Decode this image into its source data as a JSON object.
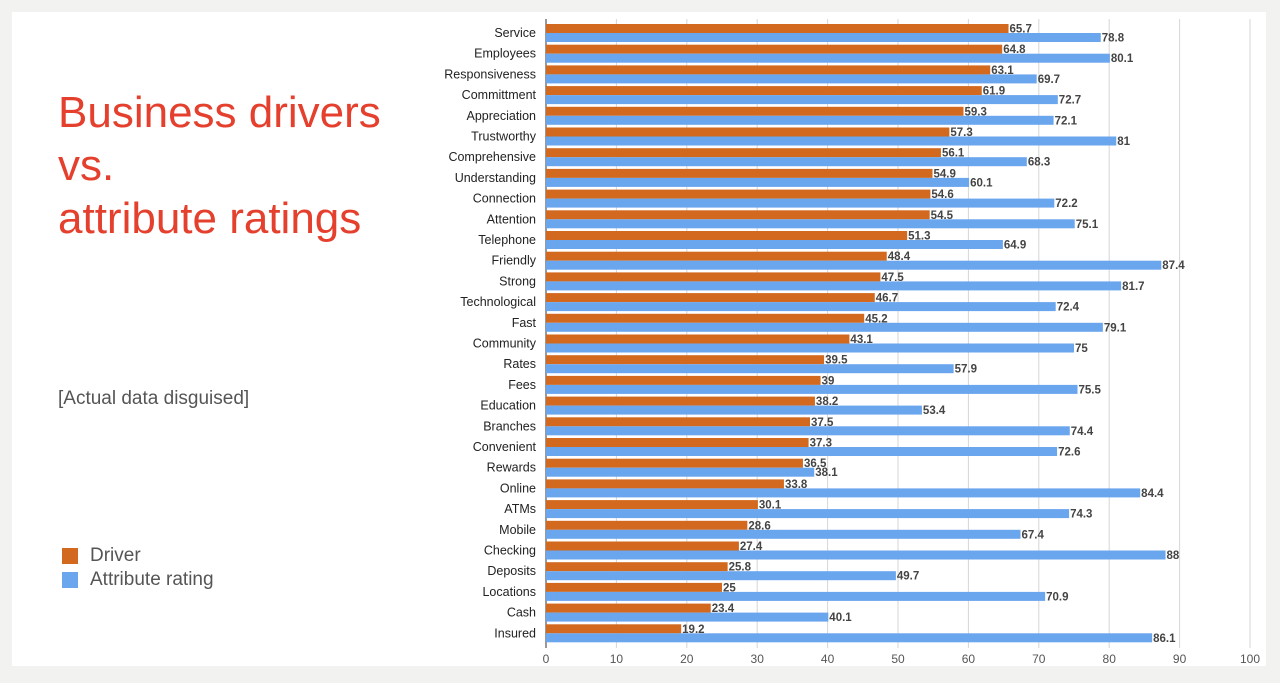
{
  "slide": {
    "title_lines": [
      "Business drivers",
      "vs.",
      "attribute ratings"
    ],
    "note": "[Actual data disguised]"
  },
  "legend": {
    "items": [
      {
        "label": "Driver",
        "color": "#d2691e"
      },
      {
        "label": "Attribute rating",
        "color": "#6aa6ee"
      }
    ]
  },
  "chart_data": {
    "type": "bar",
    "orientation": "horizontal",
    "categories": [
      "Service",
      "Employees",
      "Responsiveness",
      "Committment",
      "Appreciation",
      "Trustworthy",
      "Comprehensive",
      "Understanding",
      "Connection",
      "Attention",
      "Telephone",
      "Friendly",
      "Strong",
      "Technological",
      "Fast",
      "Community",
      "Rates",
      "Fees",
      "Education",
      "Branches",
      "Convenient",
      "Rewards",
      "Online",
      "ATMs",
      "Mobile",
      "Checking",
      "Deposits",
      "Locations",
      "Cash",
      "Insured"
    ],
    "series": [
      {
        "name": "Driver",
        "color": "#d2691e",
        "values": [
          65.7,
          64.8,
          63.1,
          61.9,
          59.3,
          57.3,
          56.1,
          54.9,
          54.6,
          54.5,
          51.3,
          48.4,
          47.5,
          46.7,
          45.2,
          43.1,
          39.5,
          39,
          38.2,
          37.5,
          37.3,
          36.5,
          33.8,
          30.1,
          28.6,
          27.4,
          25.8,
          25,
          23.4,
          19.2
        ]
      },
      {
        "name": "Attribute rating",
        "color": "#6aa6ee",
        "values": [
          78.8,
          80.1,
          69.7,
          72.7,
          72.1,
          81,
          68.3,
          60.1,
          72.2,
          75.1,
          64.9,
          87.4,
          81.7,
          72.4,
          79.1,
          75,
          57.9,
          75.5,
          53.4,
          74.4,
          72.6,
          38.1,
          84.4,
          74.3,
          67.4,
          88,
          49.7,
          70.9,
          40.1,
          86.1
        ]
      }
    ],
    "xlim": [
      0,
      100
    ],
    "x_ticks": [
      0,
      10,
      20,
      30,
      40,
      50,
      60,
      70,
      80,
      90,
      100
    ],
    "grid": true,
    "legend_position": "bottom-left"
  }
}
